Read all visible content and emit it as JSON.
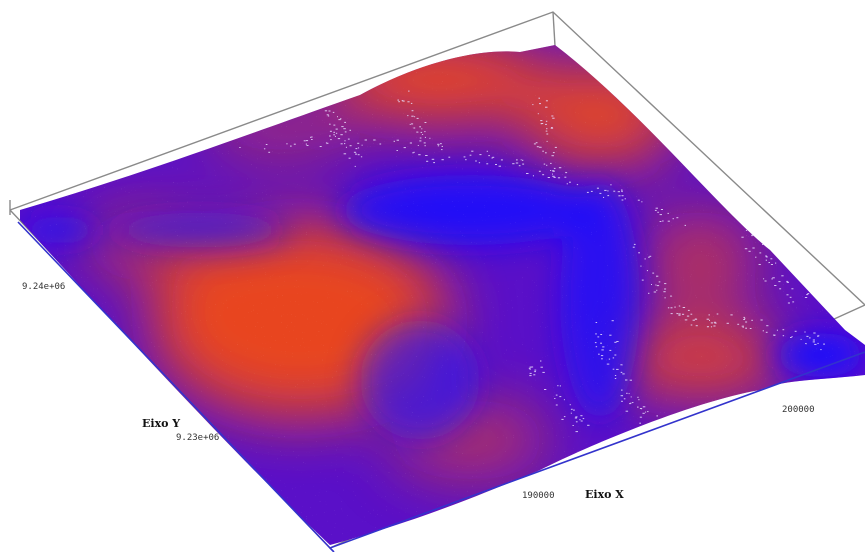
{
  "viewport": {
    "surface_colors": {
      "low": "#1a0cff",
      "mid": "#5a10c8",
      "high": "#f04a18"
    },
    "frame_colors": {
      "top_box": "#8a8a8a",
      "bottom_box": "#3333cc"
    },
    "axes": {
      "x": {
        "title": "Eixo X",
        "ticks": [
          "190000",
          "200000"
        ]
      },
      "y": {
        "title": "Eixo Y",
        "ticks": [
          "9.24e+06",
          "9.23e+06"
        ]
      }
    }
  }
}
